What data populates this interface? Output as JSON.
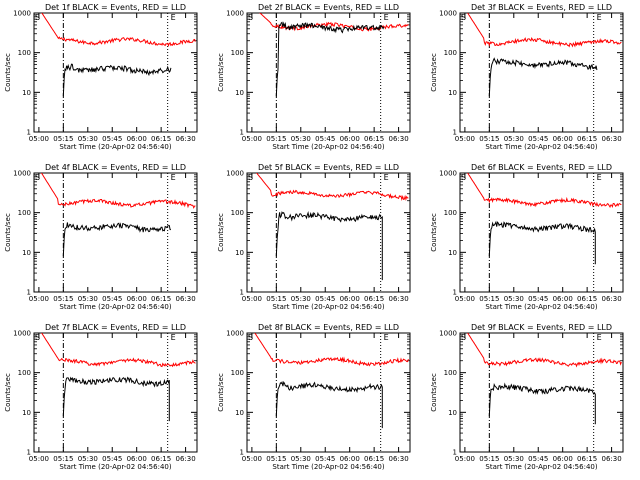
{
  "style": {
    "events_color": "#000000",
    "lld_color": "#ff0000",
    "background": "#ffffff"
  },
  "chart_data": [
    {
      "type": "line",
      "title": "Det 1f BLACK = Events, RED = LLD",
      "xlabel": "Start Time (20-Apr-02 04:56:40)",
      "ylabel": "Counts/sec",
      "y_scale": "log",
      "ylim": [
        1,
        1000
      ],
      "x_ticks": [
        "05:00",
        "05:15",
        "05:30",
        "05:45",
        "06:00",
        "06:15",
        "06:30"
      ],
      "y_ticks": [
        "1",
        "10",
        "100",
        "1000"
      ],
      "markers": {
        "start": "S",
        "end": "E"
      },
      "series": [
        {
          "name": "Events",
          "level": 40,
          "end_drop": null
        },
        {
          "name": "LLD",
          "level": 200,
          "end_drop": null
        }
      ]
    },
    {
      "type": "line",
      "title": "Det 2f BLACK = Events, RED = LLD",
      "xlabel": "Start Time (20-Apr-02 04:56:40)",
      "ylabel": "Counts/sec",
      "y_scale": "log",
      "ylim": [
        1,
        1000
      ],
      "x_ticks": [
        "05:00",
        "05:15",
        "05:30",
        "05:45",
        "06:00",
        "06:15",
        "06:30"
      ],
      "y_ticks": [
        "1",
        "10",
        "100",
        "1000"
      ],
      "markers": {
        "start": "S",
        "end": "E"
      },
      "series": [
        {
          "name": "Events",
          "level": 450,
          "end_drop": null
        },
        {
          "name": "LLD",
          "level": 470,
          "end_drop": null
        }
      ]
    },
    {
      "type": "line",
      "title": "Det 3f BLACK = Events, RED = LLD",
      "xlabel": "Start Time (20-Apr-02 04:56:40)",
      "ylabel": "Counts/sec",
      "y_scale": "log",
      "ylim": [
        1,
        1000
      ],
      "x_ticks": [
        "05:00",
        "05:15",
        "05:30",
        "05:45",
        "06:00",
        "06:15",
        "06:30"
      ],
      "y_ticks": [
        "1",
        "10",
        "100",
        "1000"
      ],
      "markers": {
        "start": "S",
        "end": "E"
      },
      "series": [
        {
          "name": "Events",
          "level": 55,
          "end_drop": null
        },
        {
          "name": "LLD",
          "level": 190,
          "end_drop": null
        }
      ]
    },
    {
      "type": "line",
      "title": "Det 4f BLACK = Events, RED = LLD",
      "xlabel": "Start Time (20-Apr-02 04:56:40)",
      "ylabel": "Counts/sec",
      "y_scale": "log",
      "ylim": [
        1,
        1000
      ],
      "x_ticks": [
        "05:00",
        "05:15",
        "05:30",
        "05:45",
        "06:00",
        "06:15",
        "06:30"
      ],
      "y_ticks": [
        "1",
        "10",
        "100",
        "1000"
      ],
      "markers": {
        "start": "S",
        "end": "E"
      },
      "series": [
        {
          "name": "Events",
          "level": 45,
          "end_drop": null
        },
        {
          "name": "LLD",
          "level": 180,
          "end_drop": null
        }
      ]
    },
    {
      "type": "line",
      "title": "Det 5f BLACK = Events, RED = LLD",
      "xlabel": "Start Time (20-Apr-02 04:56:40)",
      "ylabel": "Counts/sec",
      "y_scale": "log",
      "ylim": [
        1,
        1000
      ],
      "x_ticks": [
        "05:00",
        "05:15",
        "05:30",
        "05:45",
        "06:00",
        "06:15",
        "06:30"
      ],
      "y_ticks": [
        "1",
        "10",
        "100",
        "1000"
      ],
      "markers": {
        "start": "S",
        "end": "E"
      },
      "series": [
        {
          "name": "Events",
          "level": 80,
          "end_drop": 2
        },
        {
          "name": "LLD",
          "level": 300,
          "end_drop": null
        }
      ]
    },
    {
      "type": "line",
      "title": "Det 6f BLACK = Events, RED = LLD",
      "xlabel": "Start Time (20-Apr-02 04:56:40)",
      "ylabel": "Counts/sec",
      "y_scale": "log",
      "ylim": [
        1,
        1000
      ],
      "x_ticks": [
        "05:00",
        "05:15",
        "05:30",
        "05:45",
        "06:00",
        "06:15",
        "06:30"
      ],
      "y_ticks": [
        "1",
        "10",
        "100",
        "1000"
      ],
      "markers": {
        "start": "S",
        "end": "E"
      },
      "series": [
        {
          "name": "Events",
          "level": 45,
          "end_drop": 5
        },
        {
          "name": "LLD",
          "level": 190,
          "end_drop": null
        }
      ]
    },
    {
      "type": "line",
      "title": "Det 7f BLACK = Events, RED = LLD",
      "xlabel": "Start Time (20-Apr-02 04:56:40)",
      "ylabel": "Counts/sec",
      "y_scale": "log",
      "ylim": [
        1,
        1000
      ],
      "x_ticks": [
        "05:00",
        "05:15",
        "05:30",
        "05:45",
        "06:00",
        "06:15",
        "06:30"
      ],
      "y_ticks": [
        "1",
        "10",
        "100",
        "1000"
      ],
      "markers": {
        "start": "S",
        "end": "E"
      },
      "series": [
        {
          "name": "Events",
          "level": 65,
          "end_drop": 6
        },
        {
          "name": "LLD",
          "level": 190,
          "end_drop": null
        }
      ]
    },
    {
      "type": "line",
      "title": "Det 8f BLACK = Events, RED = LLD",
      "xlabel": "Start Time (20-Apr-02 04:56:40)",
      "ylabel": "Counts/sec",
      "y_scale": "log",
      "ylim": [
        1,
        1000
      ],
      "x_ticks": [
        "05:00",
        "05:15",
        "05:30",
        "05:45",
        "06:00",
        "06:15",
        "06:30"
      ],
      "y_ticks": [
        "1",
        "10",
        "100",
        "1000"
      ],
      "markers": {
        "start": "S",
        "end": "E"
      },
      "series": [
        {
          "name": "Events",
          "level": 45,
          "end_drop": 4
        },
        {
          "name": "LLD",
          "level": 200,
          "end_drop": null
        }
      ]
    },
    {
      "type": "line",
      "title": "Det 9f BLACK = Events, RED = LLD",
      "xlabel": "Start Time (20-Apr-02 04:56:40)",
      "ylabel": "Counts/sec",
      "y_scale": "log",
      "ylim": [
        1,
        1000
      ],
      "x_ticks": [
        "05:00",
        "05:15",
        "05:30",
        "05:45",
        "06:00",
        "06:15",
        "06:30"
      ],
      "y_ticks": [
        "1",
        "10",
        "100",
        "1000"
      ],
      "markers": {
        "start": "S",
        "end": "E"
      },
      "series": [
        {
          "name": "Events",
          "level": 40,
          "end_drop": 5
        },
        {
          "name": "LLD",
          "level": 190,
          "end_drop": null
        }
      ]
    }
  ]
}
